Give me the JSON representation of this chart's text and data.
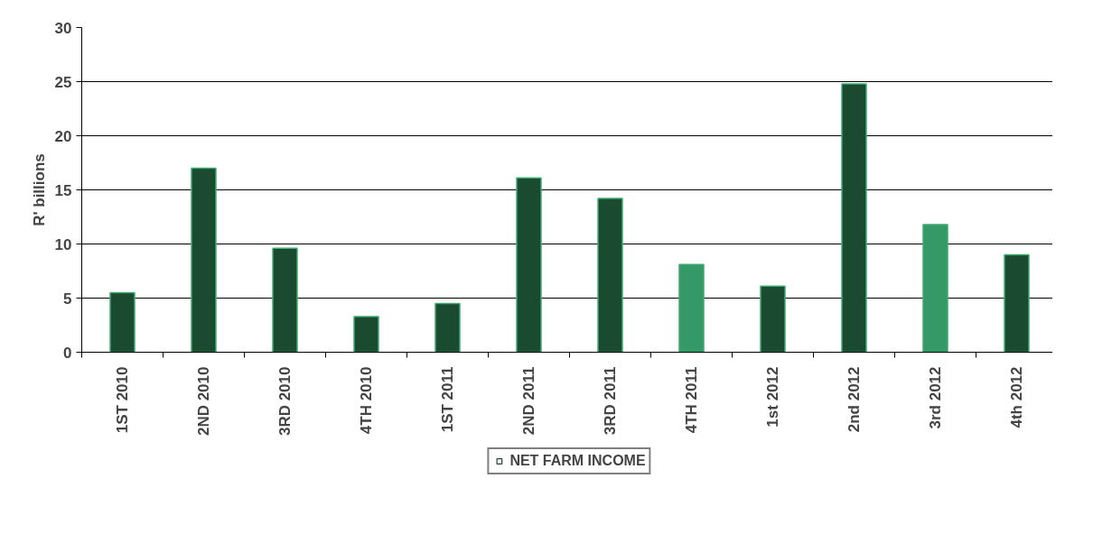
{
  "chart_data": {
    "type": "bar",
    "ylabel": "R' billions",
    "categories": [
      "1ST 2010",
      "2ND 2010",
      "3RD 2010",
      "4TH 2010",
      "1ST 2011",
      "2ND 2011",
      "3RD 2011",
      "4TH 2011",
      "1st 2012",
      "2nd 2012",
      "3rd 2012",
      "4th 2012"
    ],
    "series": [
      {
        "name": "NET FARM INCOME",
        "color": "#1a4a30",
        "colors": [
          "#1a4a30",
          "#1a4a30",
          "#1a4a30",
          "#1a4a30",
          "#1a4a30",
          "#1a4a30",
          "#1a4a30",
          "#349966",
          "#1a4a30",
          "#1a4a30",
          "#349966",
          "#1a4a30"
        ],
        "values": [
          5.5,
          17.0,
          9.6,
          3.3,
          4.5,
          16.1,
          14.2,
          8.1,
          6.1,
          24.8,
          11.8,
          9.0
        ]
      }
    ],
    "ylim": [
      0,
      30
    ],
    "yticks": [
      0,
      5,
      10,
      15,
      20,
      25,
      30
    ],
    "grid": "y",
    "legend": "bottom"
  }
}
